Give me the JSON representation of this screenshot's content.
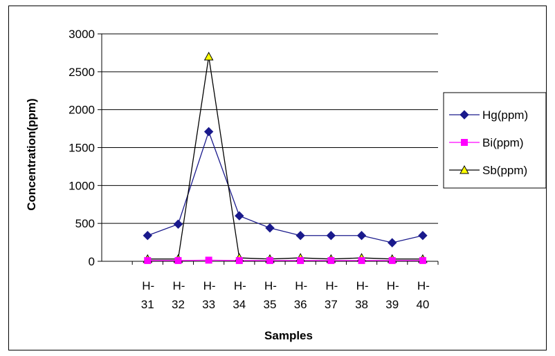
{
  "chart_data": {
    "type": "line",
    "title": "",
    "xlabel": "Samples",
    "ylabel": "Concentration(ppm)",
    "ylim": [
      0,
      3000
    ],
    "yticks": [
      0,
      500,
      1000,
      1500,
      2000,
      2500,
      3000
    ],
    "grid": "horizontal",
    "legend_position": "right",
    "categories": [
      {
        "top": "H-",
        "bottom": "31"
      },
      {
        "top": "H-",
        "bottom": "32"
      },
      {
        "top": "H-",
        "bottom": "33"
      },
      {
        "top": "H-",
        "bottom": "34"
      },
      {
        "top": "H-",
        "bottom": "35"
      },
      {
        "top": "H-",
        "bottom": "36"
      },
      {
        "top": "H-",
        "bottom": "37"
      },
      {
        "top": "H-",
        "bottom": "38"
      },
      {
        "top": "H-",
        "bottom": "39"
      },
      {
        "top": "H-",
        "bottom": "40"
      }
    ],
    "series": [
      {
        "name": "Hg(ppm)",
        "color": "#1a1a8c",
        "marker": "diamond",
        "marker_fill": "#1a1a8c",
        "values": [
          340,
          490,
          1710,
          600,
          440,
          340,
          340,
          340,
          245,
          340
        ]
      },
      {
        "name": "Bi(ppm)",
        "color": "#ff00ff",
        "marker": "square",
        "marker_fill": "#ff00ff",
        "values": [
          10,
          10,
          15,
          10,
          10,
          10,
          10,
          10,
          10,
          10
        ]
      },
      {
        "name": "Sb(ppm)",
        "color": "#000000",
        "marker": "triangle",
        "marker_fill": "#ffff00",
        "values": [
          30,
          30,
          2700,
          45,
          30,
          45,
          30,
          45,
          30,
          30
        ]
      }
    ]
  }
}
